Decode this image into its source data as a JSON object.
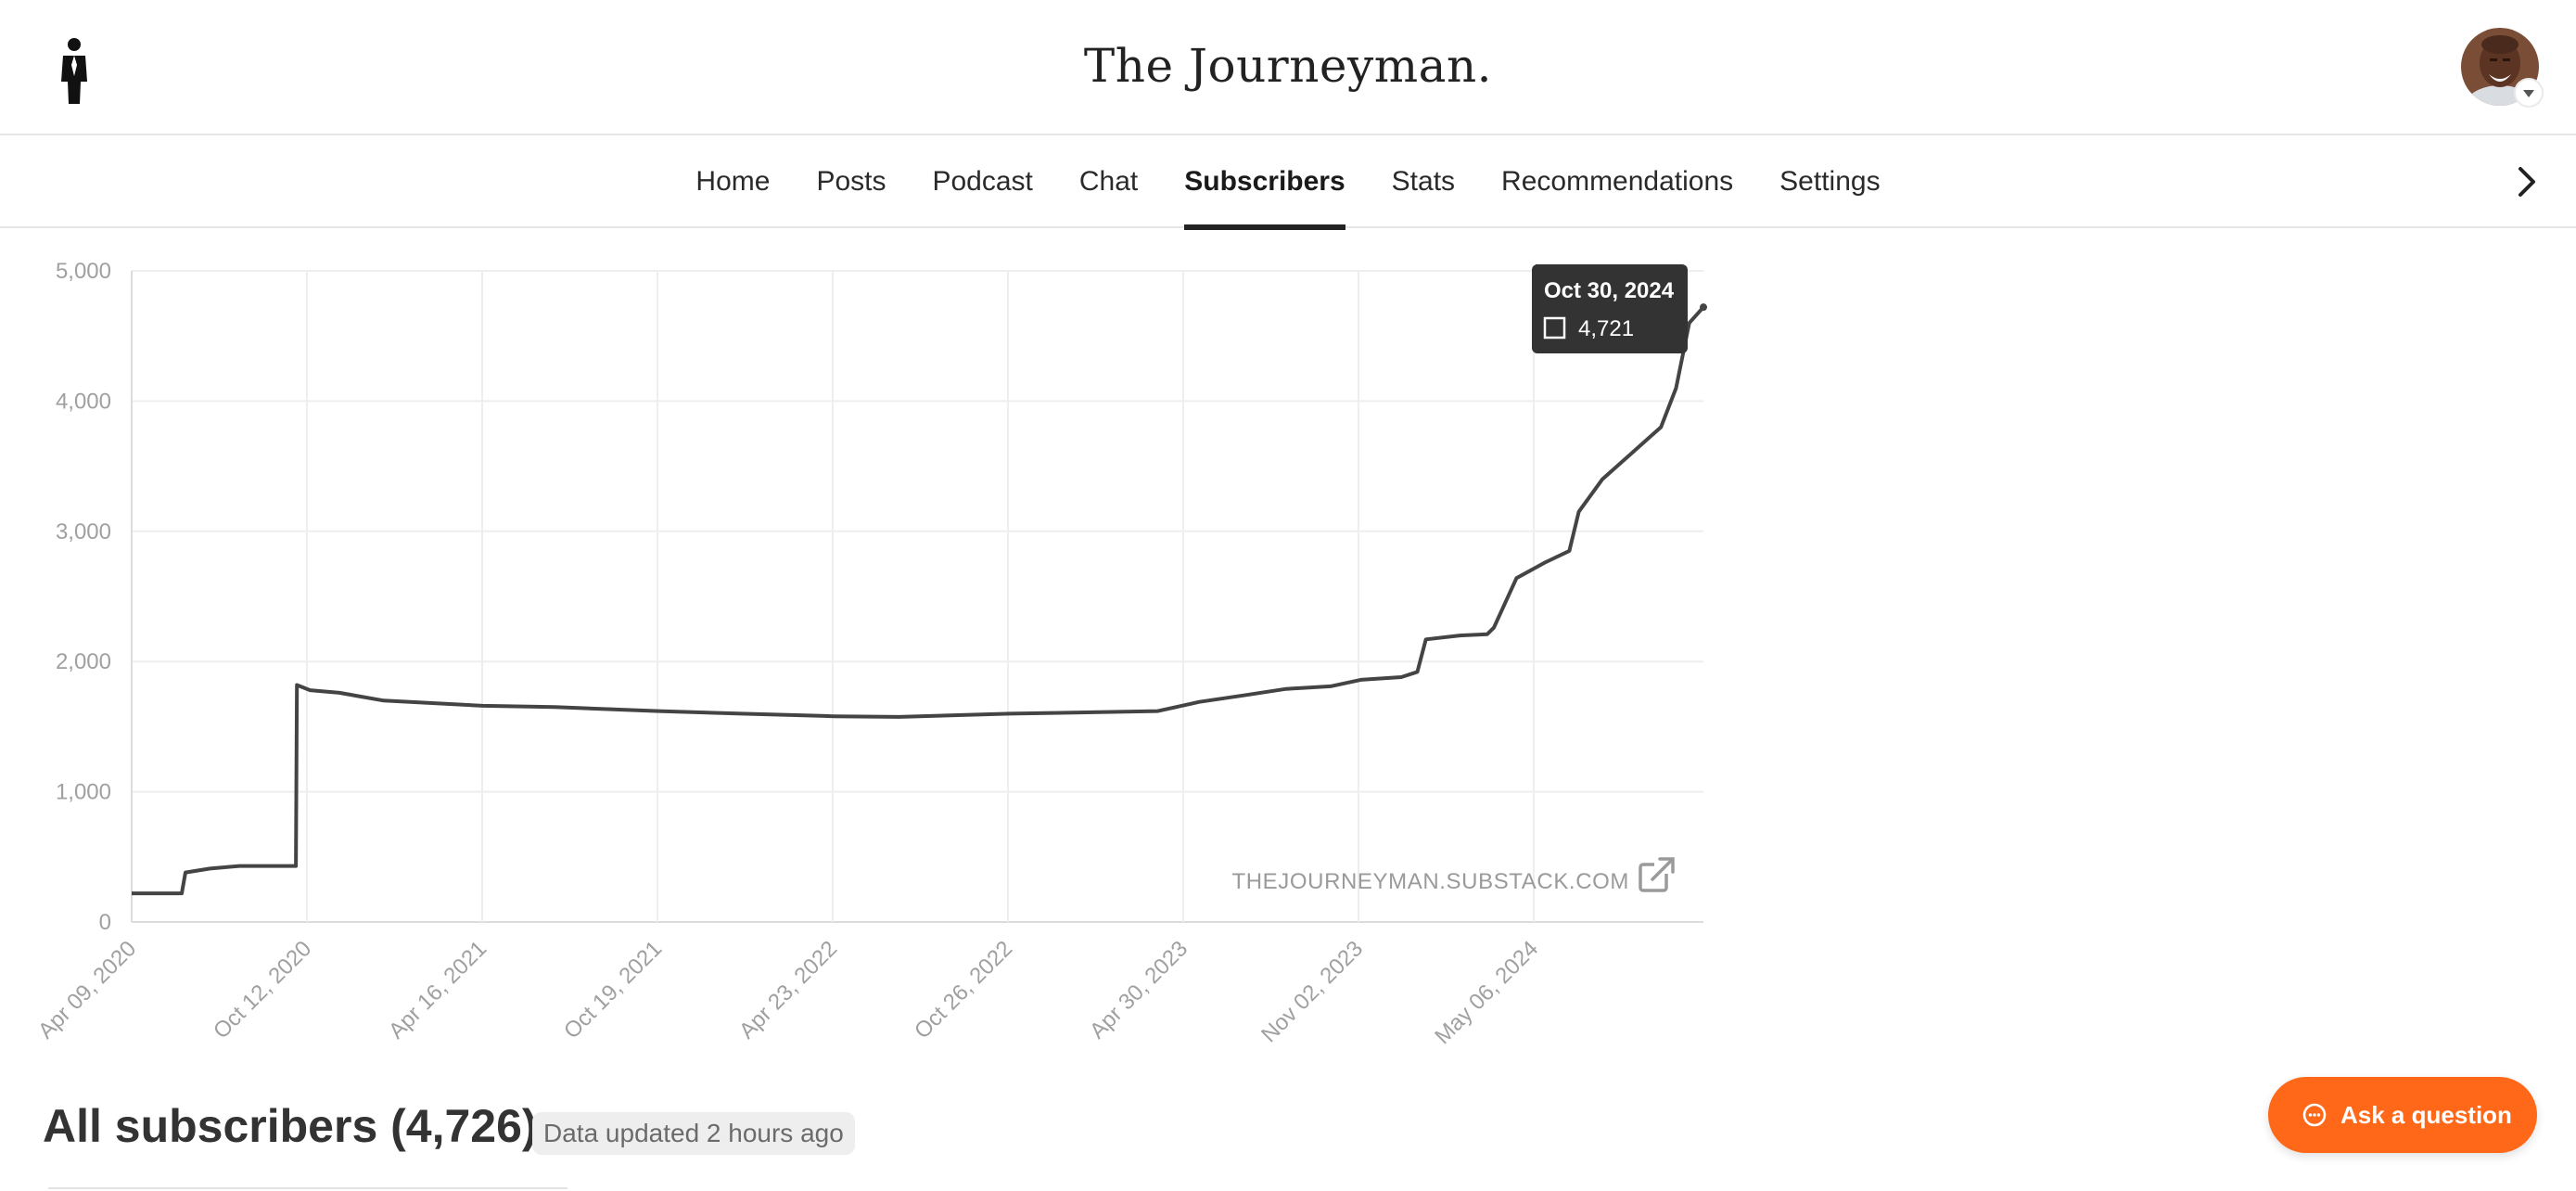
{
  "header": {
    "title": "The Journeyman.",
    "logo_icon": "person-silhouette-icon",
    "avatar_icon": "user-avatar"
  },
  "nav": {
    "items": [
      "Home",
      "Posts",
      "Podcast",
      "Chat",
      "Subscribers",
      "Stats",
      "Recommendations",
      "Settings"
    ],
    "active": "Subscribers",
    "next_icon": "chevron-right-icon"
  },
  "chart_data": {
    "type": "line",
    "title": "",
    "xlabel": "",
    "ylabel": "",
    "y_ticks": [
      "0",
      "1,000",
      "2,000",
      "3,000",
      "4,000",
      "5,000"
    ],
    "ylim": [
      0,
      5000
    ],
    "x_ticks": [
      "Apr 09, 2020",
      "Oct 12, 2020",
      "Apr 16, 2021",
      "Oct 19, 2021",
      "Apr 23, 2022",
      "Oct 26, 2022",
      "Apr 30, 2023",
      "Nov 02, 2023",
      "May 06, 2024"
    ],
    "grid": true,
    "line_color": "#444444",
    "series": [
      {
        "x": [
          "2020-04-09",
          "2020-06-01",
          "2020-06-05",
          "2020-07-01",
          "2020-08-01",
          "2020-09-01",
          "2020-09-30",
          "2020-10-01",
          "2020-10-15",
          "2020-11-15",
          "2021-01-01",
          "2021-04-16",
          "2021-07-01",
          "2021-10-19",
          "2022-01-15",
          "2022-04-23",
          "2022-07-01",
          "2022-10-26",
          "2023-01-15",
          "2023-04-01",
          "2023-05-15",
          "2023-07-01",
          "2023-08-15",
          "2023-10-01",
          "2023-11-02",
          "2023-12-15",
          "2024-01-01",
          "2024-01-10",
          "2024-02-15",
          "2024-03-15",
          "2024-03-22",
          "2024-04-15",
          "2024-05-15",
          "2024-06-10",
          "2024-06-20",
          "2024-07-15",
          "2024-08-15",
          "2024-09-15",
          "2024-10-01",
          "2024-10-15",
          "2024-10-30"
        ],
        "y": [
          220,
          220,
          380,
          410,
          430,
          430,
          430,
          1820,
          1780,
          1760,
          1700,
          1660,
          1650,
          1620,
          1600,
          1580,
          1575,
          1600,
          1610,
          1620,
          1690,
          1740,
          1790,
          1810,
          1860,
          1880,
          1920,
          2170,
          2200,
          2210,
          2260,
          2640,
          2760,
          2850,
          3150,
          3400,
          3600,
          3800,
          4100,
          4600,
          4721
        ]
      }
    ],
    "tooltip": {
      "date": "Oct 30, 2024",
      "value": "4,721",
      "x": "2024-10-30",
      "y": 4721
    },
    "watermark": "THEJOURNEYMAN.SUBSTACK.COM",
    "external_link_icon": "external-link-icon"
  },
  "summary": {
    "title": "All subscribers (4,726)",
    "updated": "Data updated 2 hours ago"
  },
  "help": {
    "label": "Ask a question",
    "icon": "chat-bubble-icon",
    "color": "#ff6719"
  }
}
